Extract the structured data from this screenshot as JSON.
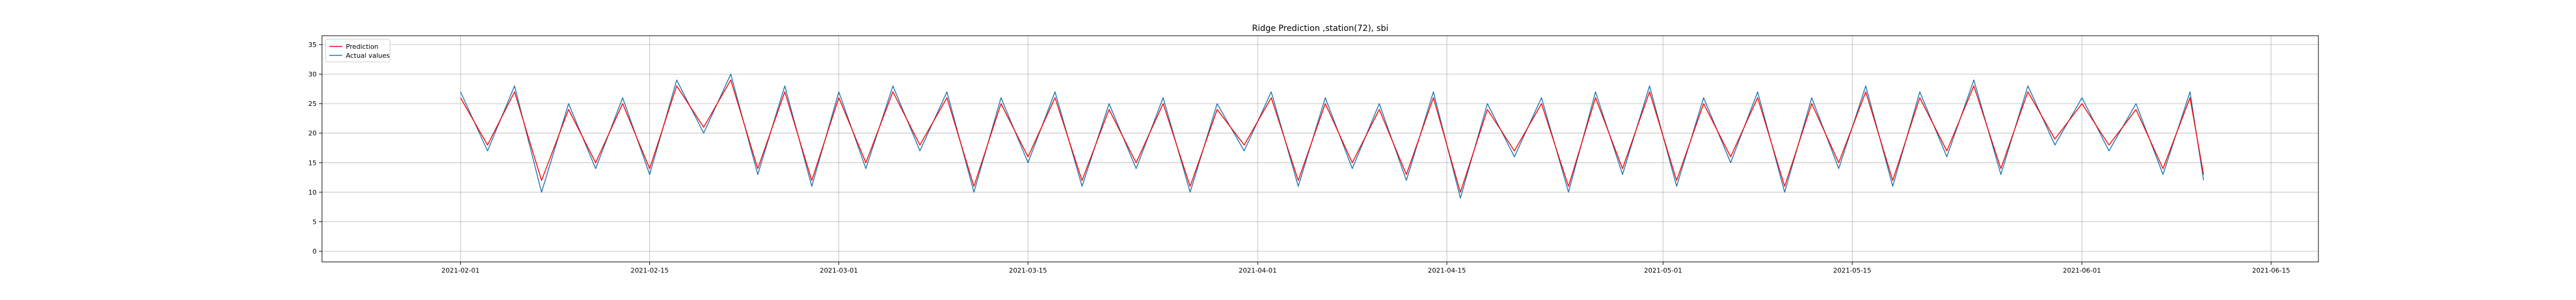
{
  "chart_data": {
    "type": "line",
    "title": "Ridge Prediction ,station(72), sbi",
    "xlabel": "",
    "ylabel": "",
    "x_range": [
      "2021-01-24",
      "2021-06-20"
    ],
    "xlim": [
      "2021-01-21 18:00",
      "2021-06-18 12:00"
    ],
    "ylim": [
      -1.8,
      36.5
    ],
    "x_ticks": [
      "2021-02-01",
      "2021-02-15",
      "2021-03-01",
      "2021-03-15",
      "2021-04-01",
      "2021-04-15",
      "2021-05-01",
      "2021-05-15",
      "2021-06-01",
      "2021-06-15"
    ],
    "y_ticks": [
      0,
      5,
      10,
      15,
      20,
      25,
      30,
      35
    ],
    "grid": true,
    "legend_position": "top-left",
    "series": [
      {
        "name": "Prediction",
        "color": "#ff0000",
        "points": [
          [
            "2021-02-01",
            26
          ],
          [
            "2021-02-03",
            18
          ],
          [
            "2021-02-05",
            27
          ],
          [
            "2021-02-07",
            12
          ],
          [
            "2021-02-09",
            24
          ],
          [
            "2021-02-11",
            15
          ],
          [
            "2021-02-13",
            25
          ],
          [
            "2021-02-15",
            14
          ],
          [
            "2021-02-17",
            28
          ],
          [
            "2021-02-19",
            21
          ],
          [
            "2021-02-21",
            29
          ],
          [
            "2021-02-23",
            14
          ],
          [
            "2021-02-25",
            27
          ],
          [
            "2021-02-27",
            12
          ],
          [
            "2021-03-01",
            26
          ],
          [
            "2021-03-03",
            15
          ],
          [
            "2021-03-05",
            27
          ],
          [
            "2021-03-07",
            18
          ],
          [
            "2021-03-09",
            26
          ],
          [
            "2021-03-11",
            11
          ],
          [
            "2021-03-13",
            25
          ],
          [
            "2021-03-15",
            16
          ],
          [
            "2021-03-17",
            26
          ],
          [
            "2021-03-19",
            12
          ],
          [
            "2021-03-21",
            24
          ],
          [
            "2021-03-23",
            15
          ],
          [
            "2021-03-25",
            25
          ],
          [
            "2021-03-27",
            11
          ],
          [
            "2021-03-29",
            24
          ],
          [
            "2021-03-31",
            18
          ],
          [
            "2021-04-02",
            26
          ],
          [
            "2021-04-04",
            12
          ],
          [
            "2021-04-06",
            25
          ],
          [
            "2021-04-08",
            15
          ],
          [
            "2021-04-10",
            24
          ],
          [
            "2021-04-12",
            13
          ],
          [
            "2021-04-14",
            26
          ],
          [
            "2021-04-16",
            10
          ],
          [
            "2021-04-18",
            24
          ],
          [
            "2021-04-20",
            17
          ],
          [
            "2021-04-22",
            25
          ],
          [
            "2021-04-24",
            11
          ],
          [
            "2021-04-26",
            26
          ],
          [
            "2021-04-28",
            14
          ],
          [
            "2021-04-30",
            27
          ],
          [
            "2021-05-02",
            12
          ],
          [
            "2021-05-04",
            25
          ],
          [
            "2021-05-06",
            16
          ],
          [
            "2021-05-08",
            26
          ],
          [
            "2021-05-10",
            11
          ],
          [
            "2021-05-12",
            25
          ],
          [
            "2021-05-14",
            15
          ],
          [
            "2021-05-16",
            27
          ],
          [
            "2021-05-18",
            12
          ],
          [
            "2021-05-20",
            26
          ],
          [
            "2021-05-22",
            17
          ],
          [
            "2021-05-24",
            28
          ],
          [
            "2021-05-26",
            14
          ],
          [
            "2021-05-28",
            27
          ],
          [
            "2021-05-30",
            19
          ],
          [
            "2021-06-01",
            25
          ],
          [
            "2021-06-03",
            18
          ],
          [
            "2021-06-05",
            24
          ],
          [
            "2021-06-07",
            14
          ],
          [
            "2021-06-09",
            26
          ],
          [
            "2021-06-10",
            13
          ]
        ]
      },
      {
        "name": "Actual values",
        "color": "#1f77b4",
        "points": [
          [
            "2021-02-01",
            27
          ],
          [
            "2021-02-03",
            17
          ],
          [
            "2021-02-05",
            28
          ],
          [
            "2021-02-07",
            10
          ],
          [
            "2021-02-09",
            25
          ],
          [
            "2021-02-11",
            14
          ],
          [
            "2021-02-13",
            26
          ],
          [
            "2021-02-15",
            13
          ],
          [
            "2021-02-17",
            29
          ],
          [
            "2021-02-19",
            20
          ],
          [
            "2021-02-21",
            30
          ],
          [
            "2021-02-23",
            13
          ],
          [
            "2021-02-25",
            28
          ],
          [
            "2021-02-27",
            11
          ],
          [
            "2021-03-01",
            27
          ],
          [
            "2021-03-03",
            14
          ],
          [
            "2021-03-05",
            28
          ],
          [
            "2021-03-07",
            17
          ],
          [
            "2021-03-09",
            27
          ],
          [
            "2021-03-11",
            10
          ],
          [
            "2021-03-13",
            26
          ],
          [
            "2021-03-15",
            15
          ],
          [
            "2021-03-17",
            27
          ],
          [
            "2021-03-19",
            11
          ],
          [
            "2021-03-21",
            25
          ],
          [
            "2021-03-23",
            14
          ],
          [
            "2021-03-25",
            26
          ],
          [
            "2021-03-27",
            10
          ],
          [
            "2021-03-29",
            25
          ],
          [
            "2021-03-31",
            17
          ],
          [
            "2021-04-02",
            27
          ],
          [
            "2021-04-04",
            11
          ],
          [
            "2021-04-06",
            26
          ],
          [
            "2021-04-08",
            14
          ],
          [
            "2021-04-10",
            25
          ],
          [
            "2021-04-12",
            12
          ],
          [
            "2021-04-14",
            27
          ],
          [
            "2021-04-16",
            9
          ],
          [
            "2021-04-18",
            25
          ],
          [
            "2021-04-20",
            16
          ],
          [
            "2021-04-22",
            26
          ],
          [
            "2021-04-24",
            10
          ],
          [
            "2021-04-26",
            27
          ],
          [
            "2021-04-28",
            13
          ],
          [
            "2021-04-30",
            28
          ],
          [
            "2021-05-02",
            11
          ],
          [
            "2021-05-04",
            26
          ],
          [
            "2021-05-06",
            15
          ],
          [
            "2021-05-08",
            27
          ],
          [
            "2021-05-10",
            10
          ],
          [
            "2021-05-12",
            26
          ],
          [
            "2021-05-14",
            14
          ],
          [
            "2021-05-16",
            28
          ],
          [
            "2021-05-18",
            11
          ],
          [
            "2021-05-20",
            27
          ],
          [
            "2021-05-22",
            16
          ],
          [
            "2021-05-24",
            29
          ],
          [
            "2021-05-26",
            13
          ],
          [
            "2021-05-28",
            28
          ],
          [
            "2021-05-30",
            18
          ],
          [
            "2021-06-01",
            26
          ],
          [
            "2021-06-03",
            17
          ],
          [
            "2021-06-05",
            25
          ],
          [
            "2021-06-07",
            13
          ],
          [
            "2021-06-09",
            27
          ],
          [
            "2021-06-10",
            12
          ]
        ]
      }
    ]
  }
}
